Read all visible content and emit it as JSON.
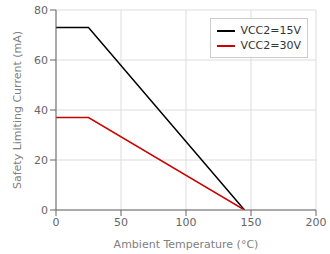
{
  "chart_data": {
    "type": "line",
    "xlabel": "Ambient Temperature (°C)",
    "ylabel": "Safety Limiting Current (mA)",
    "x": [
      0,
      25,
      145
    ],
    "series": [
      {
        "name": "VCC2=15V",
        "color": "#000000",
        "values": [
          73,
          73,
          0
        ]
      },
      {
        "name": "VCC2=30V",
        "color": "#cc0000",
        "values": [
          37,
          37,
          0
        ]
      }
    ],
    "xlim": [
      0,
      200
    ],
    "ylim": [
      0,
      80
    ],
    "xticks": [
      0,
      50,
      100,
      150,
      200
    ],
    "yticks": [
      0,
      20,
      40,
      60,
      80
    ],
    "grid": true,
    "legend": "upper right"
  }
}
